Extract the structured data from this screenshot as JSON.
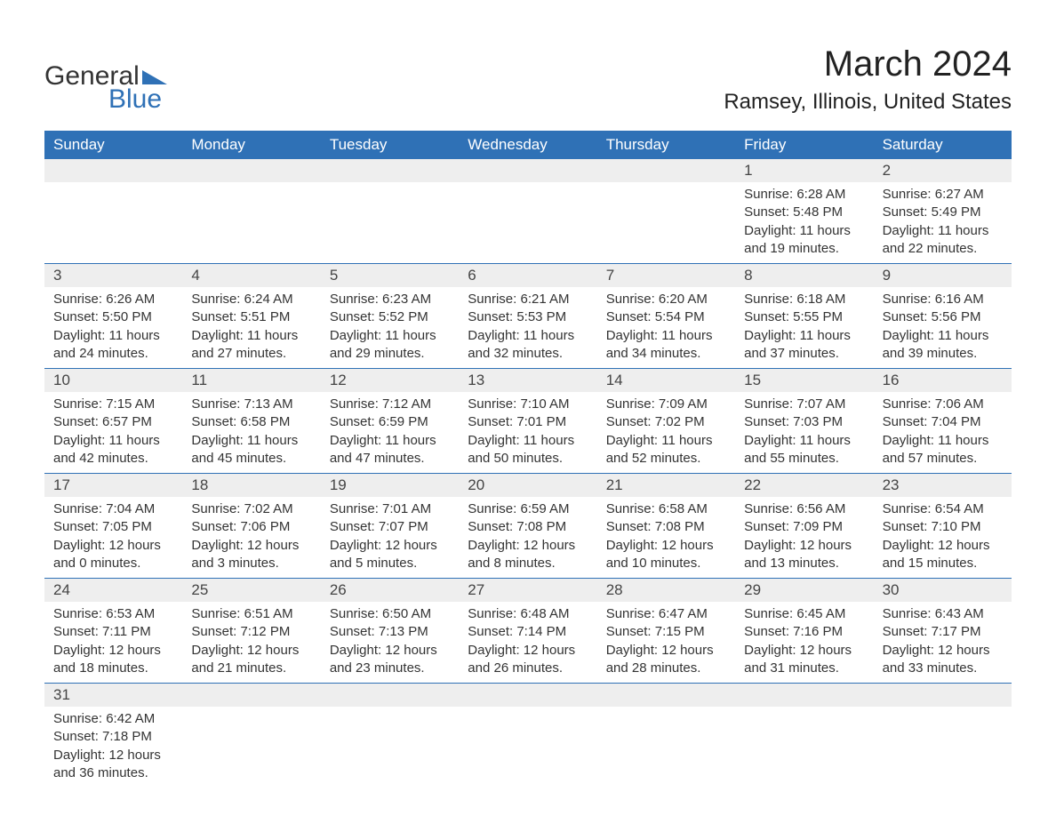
{
  "colors": {
    "header_bg": "#2f71b6",
    "header_text": "#ffffff",
    "date_row_bg": "#eeeeee",
    "logo_blue": "#2f71b6",
    "body_text": "#333333",
    "page_bg": "#ffffff",
    "separator": "#2f71b6"
  },
  "typography": {
    "title_fontsize": 40,
    "subtitle_fontsize": 24,
    "header_fontsize": 17,
    "date_fontsize": 17,
    "cell_fontsize": 15,
    "logo_fontsize": 30
  },
  "logo": {
    "word1": "General",
    "word2": "Blue"
  },
  "title": "March 2024",
  "subtitle": "Ramsey, Illinois, United States",
  "day_names": [
    "Sunday",
    "Monday",
    "Tuesday",
    "Wednesday",
    "Thursday",
    "Friday",
    "Saturday"
  ],
  "weeks": [
    {
      "dates": [
        "",
        "",
        "",
        "",
        "",
        "1",
        "2"
      ],
      "cells": [
        {},
        {},
        {},
        {},
        {},
        {
          "sunrise": "Sunrise: 6:28 AM",
          "sunset": "Sunset: 5:48 PM",
          "day1": "Daylight: 11 hours",
          "day2": "and 19 minutes."
        },
        {
          "sunrise": "Sunrise: 6:27 AM",
          "sunset": "Sunset: 5:49 PM",
          "day1": "Daylight: 11 hours",
          "day2": "and 22 minutes."
        }
      ]
    },
    {
      "dates": [
        "3",
        "4",
        "5",
        "6",
        "7",
        "8",
        "9"
      ],
      "cells": [
        {
          "sunrise": "Sunrise: 6:26 AM",
          "sunset": "Sunset: 5:50 PM",
          "day1": "Daylight: 11 hours",
          "day2": "and 24 minutes."
        },
        {
          "sunrise": "Sunrise: 6:24 AM",
          "sunset": "Sunset: 5:51 PM",
          "day1": "Daylight: 11 hours",
          "day2": "and 27 minutes."
        },
        {
          "sunrise": "Sunrise: 6:23 AM",
          "sunset": "Sunset: 5:52 PM",
          "day1": "Daylight: 11 hours",
          "day2": "and 29 minutes."
        },
        {
          "sunrise": "Sunrise: 6:21 AM",
          "sunset": "Sunset: 5:53 PM",
          "day1": "Daylight: 11 hours",
          "day2": "and 32 minutes."
        },
        {
          "sunrise": "Sunrise: 6:20 AM",
          "sunset": "Sunset: 5:54 PM",
          "day1": "Daylight: 11 hours",
          "day2": "and 34 minutes."
        },
        {
          "sunrise": "Sunrise: 6:18 AM",
          "sunset": "Sunset: 5:55 PM",
          "day1": "Daylight: 11 hours",
          "day2": "and 37 minutes."
        },
        {
          "sunrise": "Sunrise: 6:16 AM",
          "sunset": "Sunset: 5:56 PM",
          "day1": "Daylight: 11 hours",
          "day2": "and 39 minutes."
        }
      ]
    },
    {
      "dates": [
        "10",
        "11",
        "12",
        "13",
        "14",
        "15",
        "16"
      ],
      "cells": [
        {
          "sunrise": "Sunrise: 7:15 AM",
          "sunset": "Sunset: 6:57 PM",
          "day1": "Daylight: 11 hours",
          "day2": "and 42 minutes."
        },
        {
          "sunrise": "Sunrise: 7:13 AM",
          "sunset": "Sunset: 6:58 PM",
          "day1": "Daylight: 11 hours",
          "day2": "and 45 minutes."
        },
        {
          "sunrise": "Sunrise: 7:12 AM",
          "sunset": "Sunset: 6:59 PM",
          "day1": "Daylight: 11 hours",
          "day2": "and 47 minutes."
        },
        {
          "sunrise": "Sunrise: 7:10 AM",
          "sunset": "Sunset: 7:01 PM",
          "day1": "Daylight: 11 hours",
          "day2": "and 50 minutes."
        },
        {
          "sunrise": "Sunrise: 7:09 AM",
          "sunset": "Sunset: 7:02 PM",
          "day1": "Daylight: 11 hours",
          "day2": "and 52 minutes."
        },
        {
          "sunrise": "Sunrise: 7:07 AM",
          "sunset": "Sunset: 7:03 PM",
          "day1": "Daylight: 11 hours",
          "day2": "and 55 minutes."
        },
        {
          "sunrise": "Sunrise: 7:06 AM",
          "sunset": "Sunset: 7:04 PM",
          "day1": "Daylight: 11 hours",
          "day2": "and 57 minutes."
        }
      ]
    },
    {
      "dates": [
        "17",
        "18",
        "19",
        "20",
        "21",
        "22",
        "23"
      ],
      "cells": [
        {
          "sunrise": "Sunrise: 7:04 AM",
          "sunset": "Sunset: 7:05 PM",
          "day1": "Daylight: 12 hours",
          "day2": "and 0 minutes."
        },
        {
          "sunrise": "Sunrise: 7:02 AM",
          "sunset": "Sunset: 7:06 PM",
          "day1": "Daylight: 12 hours",
          "day2": "and 3 minutes."
        },
        {
          "sunrise": "Sunrise: 7:01 AM",
          "sunset": "Sunset: 7:07 PM",
          "day1": "Daylight: 12 hours",
          "day2": "and 5 minutes."
        },
        {
          "sunrise": "Sunrise: 6:59 AM",
          "sunset": "Sunset: 7:08 PM",
          "day1": "Daylight: 12 hours",
          "day2": "and 8 minutes."
        },
        {
          "sunrise": "Sunrise: 6:58 AM",
          "sunset": "Sunset: 7:08 PM",
          "day1": "Daylight: 12 hours",
          "day2": "and 10 minutes."
        },
        {
          "sunrise": "Sunrise: 6:56 AM",
          "sunset": "Sunset: 7:09 PM",
          "day1": "Daylight: 12 hours",
          "day2": "and 13 minutes."
        },
        {
          "sunrise": "Sunrise: 6:54 AM",
          "sunset": "Sunset: 7:10 PM",
          "day1": "Daylight: 12 hours",
          "day2": "and 15 minutes."
        }
      ]
    },
    {
      "dates": [
        "24",
        "25",
        "26",
        "27",
        "28",
        "29",
        "30"
      ],
      "cells": [
        {
          "sunrise": "Sunrise: 6:53 AM",
          "sunset": "Sunset: 7:11 PM",
          "day1": "Daylight: 12 hours",
          "day2": "and 18 minutes."
        },
        {
          "sunrise": "Sunrise: 6:51 AM",
          "sunset": "Sunset: 7:12 PM",
          "day1": "Daylight: 12 hours",
          "day2": "and 21 minutes."
        },
        {
          "sunrise": "Sunrise: 6:50 AM",
          "sunset": "Sunset: 7:13 PM",
          "day1": "Daylight: 12 hours",
          "day2": "and 23 minutes."
        },
        {
          "sunrise": "Sunrise: 6:48 AM",
          "sunset": "Sunset: 7:14 PM",
          "day1": "Daylight: 12 hours",
          "day2": "and 26 minutes."
        },
        {
          "sunrise": "Sunrise: 6:47 AM",
          "sunset": "Sunset: 7:15 PM",
          "day1": "Daylight: 12 hours",
          "day2": "and 28 minutes."
        },
        {
          "sunrise": "Sunrise: 6:45 AM",
          "sunset": "Sunset: 7:16 PM",
          "day1": "Daylight: 12 hours",
          "day2": "and 31 minutes."
        },
        {
          "sunrise": "Sunrise: 6:43 AM",
          "sunset": "Sunset: 7:17 PM",
          "day1": "Daylight: 12 hours",
          "day2": "and 33 minutes."
        }
      ]
    },
    {
      "dates": [
        "31",
        "",
        "",
        "",
        "",
        "",
        ""
      ],
      "cells": [
        {
          "sunrise": "Sunrise: 6:42 AM",
          "sunset": "Sunset: 7:18 PM",
          "day1": "Daylight: 12 hours",
          "day2": "and 36 minutes."
        },
        {},
        {},
        {},
        {},
        {},
        {}
      ]
    }
  ]
}
